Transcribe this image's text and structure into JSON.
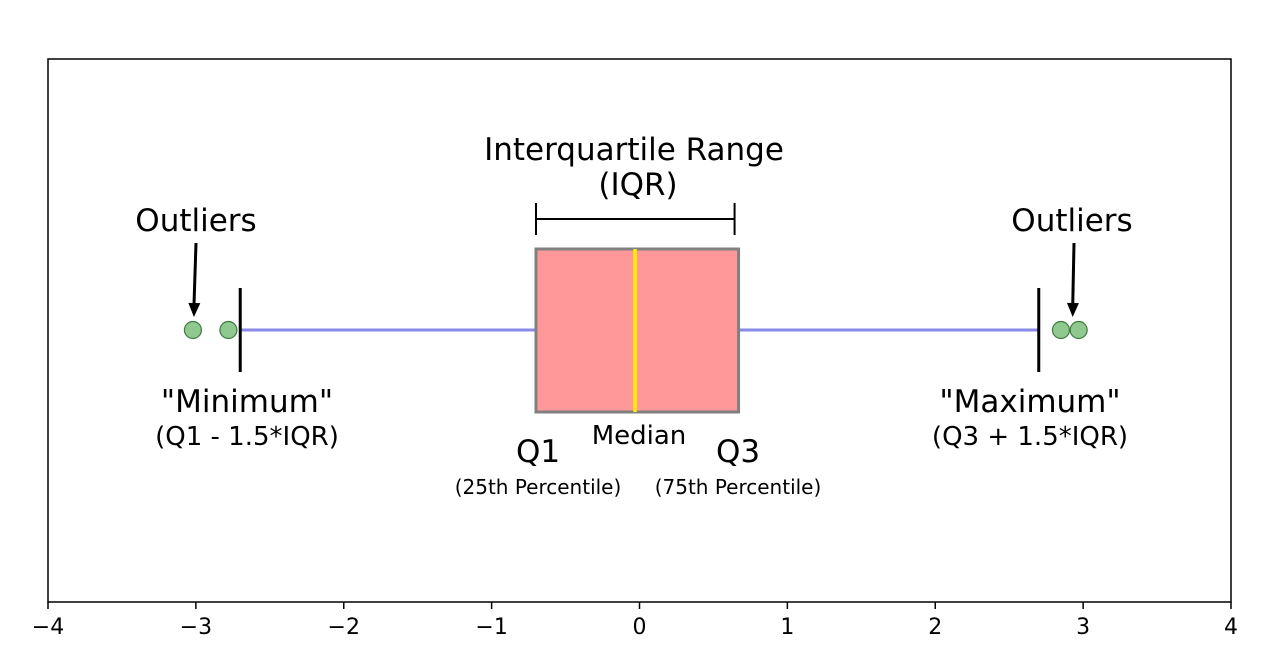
{
  "chart_data": {
    "type": "box",
    "orientation": "horizontal",
    "xlim": [
      -4,
      4
    ],
    "ticks": [
      {
        "value": -4,
        "label": "−4"
      },
      {
        "value": -3,
        "label": "−3"
      },
      {
        "value": -2,
        "label": "−2"
      },
      {
        "value": -1,
        "label": "−1"
      },
      {
        "value": 0,
        "label": "0"
      },
      {
        "value": 1,
        "label": "1"
      },
      {
        "value": 2,
        "label": "2"
      },
      {
        "value": 3,
        "label": "3"
      },
      {
        "value": 4,
        "label": "4"
      }
    ],
    "grid": false,
    "box": {
      "whisker_low": -2.7,
      "q1": -0.7,
      "median": -0.03,
      "q3": 0.67,
      "whisker_high": 2.7,
      "outliers": [
        -3.02,
        -2.78,
        2.85,
        2.97
      ]
    },
    "colors": {
      "box_fill": "#ff9999",
      "box_edge": "#808080",
      "median": "#ffee00",
      "whisker": "#8a8ae8",
      "outlier_fill": "#8fc98f",
      "outlier_edge": "#3e7a3e",
      "annotation": "#000000"
    },
    "annotations": {
      "iqr_title": "Interquartile Range",
      "iqr_abbr": "(IQR)",
      "outliers_left": "Outliers",
      "outliers_right": "Outliers",
      "minimum": "\"Minimum\"",
      "minimum_formula": "(Q1 - 1.5*IQR)",
      "maximum": "\"Maximum\"",
      "maximum_formula": "(Q3 + 1.5*IQR)",
      "q1": "Q1",
      "q1_desc": "(25th Percentile)",
      "median": "Median",
      "q3": "Q3",
      "q3_desc": "(75th Percentile)"
    }
  }
}
